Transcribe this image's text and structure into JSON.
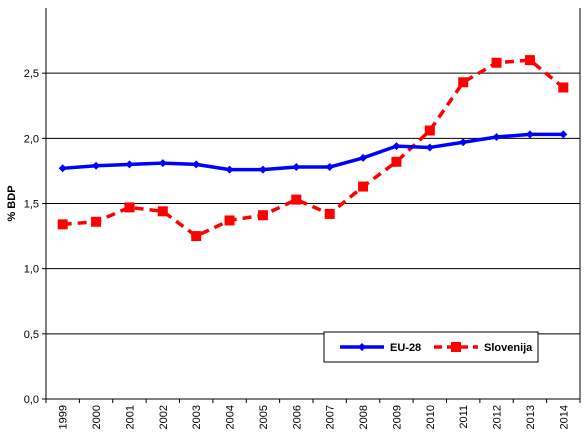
{
  "chart_data": {
    "type": "line",
    "title": "",
    "xlabel": "",
    "ylabel": "% BDP",
    "categories": [
      "1999",
      "2000",
      "2001",
      "2002",
      "2003",
      "2004",
      "2005",
      "2006",
      "2007",
      "2008",
      "2009",
      "2010",
      "2011",
      "2012",
      "2013",
      "2014"
    ],
    "ylim": [
      0,
      3
    ],
    "yticks": [
      0,
      0.5,
      1.0,
      1.5,
      2.0,
      2.5
    ],
    "ytick_labels": [
      "0,0",
      "0,5",
      "1,0",
      "1,5",
      "2,0",
      "2,5"
    ],
    "grid": "horizontal",
    "legend_position": "bottom-right",
    "series": [
      {
        "name": "EU-28",
        "color": "#0000FF",
        "line_style": "solid",
        "marker": "diamond",
        "values": [
          1.77,
          1.79,
          1.8,
          1.81,
          1.8,
          1.76,
          1.76,
          1.78,
          1.78,
          1.85,
          1.94,
          1.93,
          1.97,
          2.01,
          2.03,
          2.03
        ]
      },
      {
        "name": "Slovenija",
        "color": "#FF0000",
        "line_style": "dashed",
        "marker": "square",
        "values": [
          1.34,
          1.36,
          1.47,
          1.44,
          1.25,
          1.37,
          1.41,
          1.53,
          1.42,
          1.63,
          1.82,
          2.06,
          2.43,
          2.58,
          2.6,
          2.39
        ]
      }
    ]
  }
}
